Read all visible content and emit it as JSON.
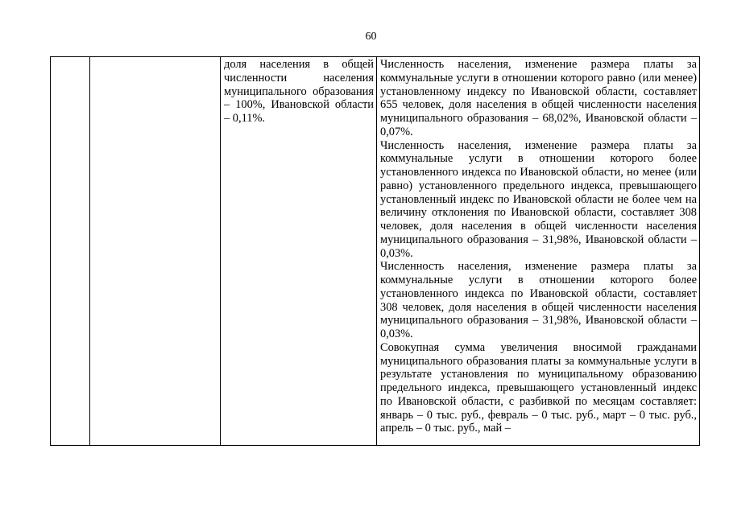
{
  "page_number": "60",
  "table": {
    "row": {
      "col1": "",
      "col2": "",
      "col3": "доля населения в общей численности населения муниципального образования – 100%, Ивановской области – 0,11%.",
      "col4_paragraphs": [
        "Численность населения, изменение размера платы за коммунальные услуги в отношении которого равно (или менее) установленному индексу по Ивановской области, составляет 655 человек, доля населения в общей численности населения муниципального образования – 68,02%, Ивановской области – 0,07%.",
        "Численность населения, изменение размера платы за коммунальные услуги в отношении которого более установленного индекса по Ивановской области, но менее (или равно) установленного предельного индекса, превышающего установленный индекс по Ивановской области не более чем на величину отклонения по Ивановской области, составляет 308 человек, доля населения в общей численности населения муниципального образования – 31,98%, Ивановской области – 0,03%.",
        "Численность населения, изменение размера платы за коммунальные услуги в отношении которого более установленного индекса по Ивановской области, составляет 308 человек, доля населения в общей численности населения муниципального образования – 31,98%, Ивановской области – 0,03%.",
        "Совокупная сумма увеличения вносимой гражданами муниципального образования платы за коммунальные услуги в результате установления по муниципальному образованию предельного индекса, превышающего установленный индекс по Ивановской области, с разбивкой по месяцам составляет: январь – 0 тыс. руб., февраль – 0 тыс. руб., март – 0 тыс. руб., апрель – 0 тыс. руб., май –"
      ]
    }
  }
}
